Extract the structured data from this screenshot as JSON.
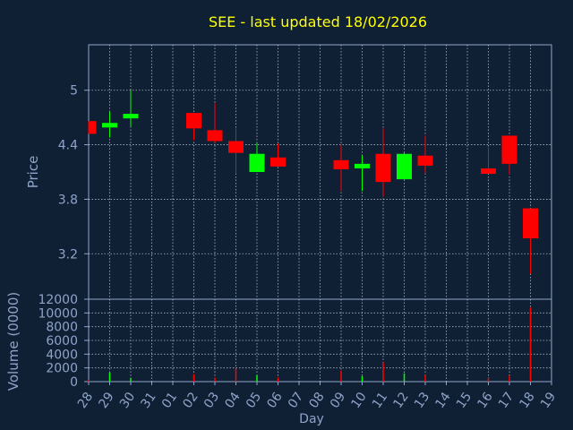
{
  "title": "SEE - last updated 18/02/2026",
  "colors": {
    "background": "#0f2034",
    "plot_background": "#0f2034",
    "axis": "#8fa3c9",
    "grid": "#c8d0de",
    "title": "#ffff00",
    "labels": "#8fa3c9",
    "up": "#00ff00",
    "down": "#ff0000"
  },
  "chart_data": [
    {
      "type": "candlestick",
      "ylabel": "Price",
      "ylim": [
        2.7,
        5.5
      ],
      "yticks": [
        3.2,
        3.8,
        4.4,
        5
      ],
      "ytick_labels": [
        "3.2",
        "3.8",
        "4.4",
        "5"
      ],
      "grid": true,
      "x": [
        "28",
        "29",
        "30",
        "31",
        "01",
        "02",
        "03",
        "04",
        "05",
        "06",
        "07",
        "08",
        "09",
        "10",
        "11",
        "12",
        "13",
        "14",
        "15",
        "16",
        "17",
        "18",
        "19"
      ],
      "candles": [
        {
          "x": "28",
          "open": 4.66,
          "high": 4.66,
          "low": 4.52,
          "close": 4.52
        },
        {
          "x": "29",
          "open": 4.59,
          "high": 4.76,
          "low": 4.48,
          "close": 4.64
        },
        {
          "x": "30",
          "open": 4.69,
          "high": 5.0,
          "low": 4.6,
          "close": 4.74
        },
        {
          "x": "02",
          "open": 4.75,
          "high": 4.75,
          "low": 4.45,
          "close": 4.58
        },
        {
          "x": "03",
          "open": 4.56,
          "high": 4.86,
          "low": 4.42,
          "close": 4.44
        },
        {
          "x": "04",
          "open": 4.44,
          "high": 4.58,
          "low": 4.08,
          "close": 4.31
        },
        {
          "x": "05",
          "open": 4.1,
          "high": 4.42,
          "low": 4.1,
          "close": 4.3
        },
        {
          "x": "06",
          "open": 4.26,
          "high": 4.41,
          "low": 4.16,
          "close": 4.16
        },
        {
          "x": "09",
          "open": 4.23,
          "high": 4.4,
          "low": 3.89,
          "close": 4.13
        },
        {
          "x": "10",
          "open": 4.14,
          "high": 4.28,
          "low": 3.89,
          "close": 4.19
        },
        {
          "x": "11",
          "open": 4.3,
          "high": 4.58,
          "low": 3.83,
          "close": 3.99
        },
        {
          "x": "12",
          "open": 4.02,
          "high": 4.31,
          "low": 4.02,
          "close": 4.3
        },
        {
          "x": "13",
          "open": 4.28,
          "high": 4.5,
          "low": 4.09,
          "close": 4.17
        },
        {
          "x": "16",
          "open": 4.14,
          "high": 4.37,
          "low": 4.08,
          "close": 4.08
        },
        {
          "x": "17",
          "open": 4.5,
          "high": 4.5,
          "low": 4.07,
          "close": 4.19
        },
        {
          "x": "18",
          "open": 3.7,
          "high": 3.7,
          "low": 2.98,
          "close": 3.37
        }
      ]
    },
    {
      "type": "bar",
      "xlabel": "Day",
      "ylabel": "Volume (0000)",
      "ylim": [
        0,
        12000
      ],
      "yticks": [
        0,
        2000,
        4000,
        6000,
        8000,
        10000,
        12000
      ],
      "ytick_labels": [
        "0",
        "2000",
        "4000",
        "6000",
        "8000",
        "10000",
        "12000"
      ],
      "grid": true,
      "x": [
        "28",
        "29",
        "30",
        "31",
        "01",
        "02",
        "03",
        "04",
        "05",
        "06",
        "07",
        "08",
        "09",
        "10",
        "11",
        "12",
        "13",
        "14",
        "15",
        "16",
        "17",
        "18",
        "19"
      ],
      "bars": [
        {
          "x": "28",
          "value": 200,
          "dir": "down"
        },
        {
          "x": "29",
          "value": 1300,
          "dir": "up"
        },
        {
          "x": "30",
          "value": 500,
          "dir": "up"
        },
        {
          "x": "02",
          "value": 1100,
          "dir": "down"
        },
        {
          "x": "03",
          "value": 600,
          "dir": "down"
        },
        {
          "x": "04",
          "value": 1900,
          "dir": "down"
        },
        {
          "x": "05",
          "value": 900,
          "dir": "up"
        },
        {
          "x": "06",
          "value": 600,
          "dir": "down"
        },
        {
          "x": "09",
          "value": 1600,
          "dir": "down"
        },
        {
          "x": "10",
          "value": 800,
          "dir": "up"
        },
        {
          "x": "11",
          "value": 2800,
          "dir": "down"
        },
        {
          "x": "12",
          "value": 1200,
          "dir": "up"
        },
        {
          "x": "13",
          "value": 1000,
          "dir": "down"
        },
        {
          "x": "16",
          "value": 500,
          "dir": "down"
        },
        {
          "x": "17",
          "value": 900,
          "dir": "down"
        },
        {
          "x": "18",
          "value": 10800,
          "dir": "down"
        }
      ]
    }
  ]
}
